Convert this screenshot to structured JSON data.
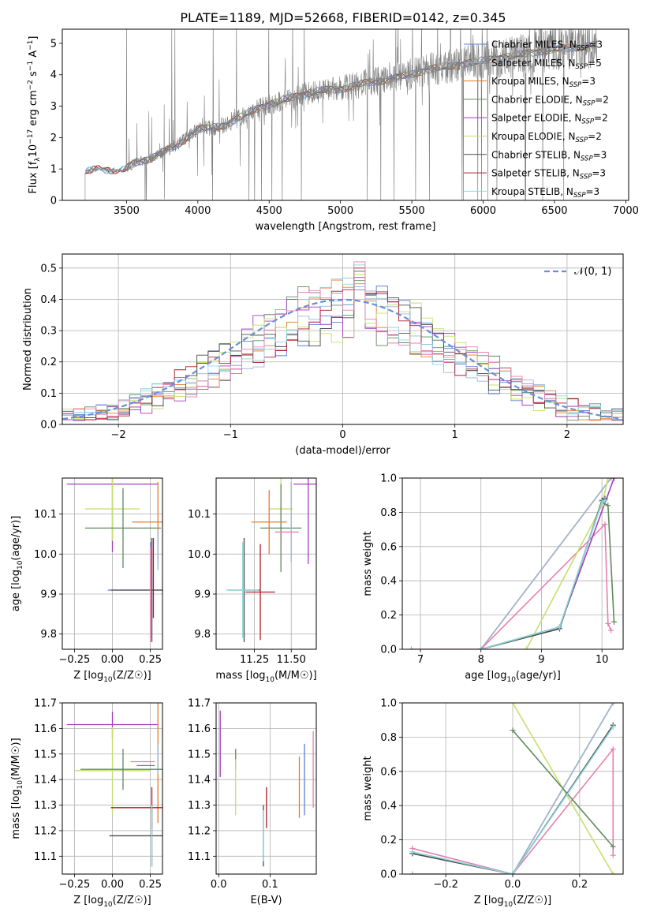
{
  "figure_title": "PLATE=1189, MJD=52668, FIBERID=0142, z=0.345",
  "colors": {
    "Chabrier MILES": "#5b7fd6",
    "Salpeter MILES": "#98b7d8",
    "Kroupa MILES": "#e87b25",
    "Chabrier ELODIE": "#5f8a5f",
    "Salpeter ELODIE": "#a23fbf",
    "Kroupa ELODIE": "#c5df6e",
    "Chabrier STELIB": "#4b4b4b",
    "Salpeter STELIB": "#b01a2a",
    "Kroupa STELIB": "#8fd6de",
    "pink_extra": "#e87fb0",
    "data": "#808080",
    "normal": "#6a8fd8"
  },
  "chart_data": [
    {
      "type": "line",
      "id": "spectrum",
      "xlabel": "wavelength [Angstrom, rest frame]",
      "ylabel_parts": [
        "Flux [f",
        "λ",
        "10",
        "−17",
        " erg cm",
        "−2",
        " s",
        "−1",
        " A",
        "−1",
        "]"
      ],
      "xlim": [
        3050,
        7020
      ],
      "ylim": [
        0,
        5.45
      ],
      "xticks": [
        3500,
        4000,
        4500,
        5000,
        5500,
        6000,
        6500,
        7000
      ],
      "yticks": [
        0,
        1,
        2,
        3,
        4,
        5
      ],
      "grid": false,
      "legend_position": "upper right",
      "series": [
        {
          "name": "Chabrier MILES",
          "sub": "SSP",
          "n": "3"
        },
        {
          "name": "Salpeter MILES",
          "sub": "SSP",
          "n": "5"
        },
        {
          "name": "Kroupa MILES",
          "sub": "SSP",
          "n": "3"
        },
        {
          "name": "Chabrier ELODIE",
          "sub": "SSP",
          "n": "2"
        },
        {
          "name": "Salpeter ELODIE",
          "sub": "SSP",
          "n": "2"
        },
        {
          "name": "Kroupa ELODIE",
          "sub": "SSP",
          "n": "2"
        },
        {
          "name": "Chabrier STELIB",
          "sub": "SSP",
          "n": "3"
        },
        {
          "name": "Salpeter STELIB",
          "sub": "SSP",
          "n": "3"
        },
        {
          "name": "Kroupa STELIB",
          "sub": "SSP",
          "n": "3"
        }
      ],
      "continuum": {
        "x": [
          3210,
          3300,
          3480,
          3560,
          3700,
          3850,
          4000,
          4200,
          4400,
          4600,
          4800,
          5000,
          5200,
          5400,
          5600,
          5800,
          6000,
          6200,
          6400,
          6600,
          6800
        ],
        "y": [
          0.9,
          1.0,
          0.95,
          1.2,
          1.4,
          1.75,
          2.25,
          2.4,
          2.9,
          3.2,
          3.45,
          3.55,
          3.75,
          3.9,
          4.15,
          4.3,
          4.45,
          4.6,
          4.75,
          4.85,
          4.95
        ]
      }
    },
    {
      "type": "histogram",
      "id": "residuals",
      "xlabel": "(data-model)/error",
      "ylabel": "Normed distribution",
      "xlim": [
        -2.5,
        2.5
      ],
      "ylim": [
        0,
        0.545
      ],
      "xticks": [
        -2,
        -1,
        0,
        1,
        2
      ],
      "yticks": [
        0.0,
        0.1,
        0.2,
        0.3,
        0.4,
        0.5
      ],
      "grid": true,
      "legend": [
        {
          "label": "𝒩(0, 1)"
        }
      ],
      "legend_position": "upper right",
      "bin_width": 0.1,
      "bin_start": -2.5
    },
    {
      "type": "scatter",
      "id": "age_vs_Z",
      "xlabel": "Z [log10(Z/Z☉)]",
      "ylabel": "age  [log10(age/yr)]",
      "xlim": [
        -0.33,
        0.33
      ],
      "ylim": [
        9.762,
        10.19
      ],
      "xticks": [
        -0.25,
        0.0,
        0.25
      ],
      "xticklabels": [
        "−0.25",
        "0.00",
        "0.25"
      ],
      "yticks": [
        9.8,
        9.9,
        10.0,
        10.1
      ],
      "grid": true,
      "errorbars": [
        {
          "c": "Salpeter ELODIE",
          "x": 0.0,
          "y": 10.175,
          "xerr": 0.3,
          "yerr": 0.17
        },
        {
          "c": "Kroupa ELODIE",
          "x": 0.0,
          "y": 10.113,
          "xerr": 0.18,
          "yerr": 0.08
        },
        {
          "c": "Chabrier ELODIE",
          "x": 0.07,
          "y": 10.065,
          "xerr": 0.25,
          "yerr": 0.1
        },
        {
          "c": "Kroupa MILES",
          "x": 0.3,
          "y": 10.08,
          "xerr": 0.17,
          "yerr": 0.1
        },
        {
          "c": "Chabrier MILES",
          "x": 0.25,
          "y": 9.91,
          "xerr": 0.28,
          "yerr": 0.12
        },
        {
          "c": "Chabrier STELIB",
          "x": 0.26,
          "y": 9.91,
          "xerr": 0.27,
          "yerr": 0.13
        },
        {
          "c": "Salpeter STELIB",
          "x": 0.27,
          "y": 9.94,
          "xerr": 0.0,
          "yerr": 0.1
        },
        {
          "c": "pink_extra",
          "x": 0.25,
          "y": 9.9,
          "xerr": 0.0,
          "yerr": 0.12
        },
        {
          "c": "Salpeter MILES",
          "x": 0.3,
          "y": 10.01,
          "xerr": 0.0,
          "yerr": 0.05
        }
      ]
    },
    {
      "type": "scatter",
      "id": "age_vs_mass",
      "xlabel": "mass [log10(M/M☉)]",
      "ylabel": "",
      "xlim": [
        10.99,
        11.67
      ],
      "ylim": [
        9.762,
        10.19
      ],
      "xticks": [
        11.25,
        11.5
      ],
      "xticklabels": [
        "11.25",
        "11.50"
      ],
      "yticks": [
        9.8,
        9.9,
        10.0,
        10.1
      ],
      "grid": true,
      "errorbars": [
        {
          "c": "Salpeter ELODIE",
          "x": 11.615,
          "y": 10.175,
          "xerr": 0.1,
          "yerr": 0.2
        },
        {
          "c": "Kroupa ELODIE",
          "x": 11.43,
          "y": 10.113,
          "xerr": 0.08,
          "yerr": 0.09
        },
        {
          "c": "Chabrier ELODIE",
          "x": 11.43,
          "y": 10.065,
          "xerr": 0.14,
          "yerr": 0.11
        },
        {
          "c": "Kroupa MILES",
          "x": 11.35,
          "y": 10.08,
          "xerr": 0.12,
          "yerr": 0.08
        },
        {
          "c": "Salpeter MILES",
          "x": 11.5,
          "y": 10.08,
          "xerr": 0.0,
          "yerr": 0.1
        },
        {
          "c": "pink_extra",
          "x": 11.47,
          "y": 10.055,
          "xerr": 0.08,
          "yerr": 0.0
        },
        {
          "c": "Chabrier STELIB",
          "x": 11.18,
          "y": 9.91,
          "xerr": 0.11,
          "yerr": 0.13
        },
        {
          "c": "Salpeter STELIB",
          "x": 11.29,
          "y": 9.905,
          "xerr": 0.1,
          "yerr": 0.12
        },
        {
          "c": "Kroupa STELIB",
          "x": 11.17,
          "y": 9.91,
          "xerr": 0.11,
          "yerr": 0.12
        }
      ]
    },
    {
      "type": "line",
      "id": "massweight_vs_age",
      "xlabel": "age  [log10(age/yr)]",
      "ylabel": "mass weight",
      "xlim": [
        6.7,
        10.35
      ],
      "ylim": [
        0,
        1
      ],
      "xticks": [
        7,
        8,
        9,
        10
      ],
      "yticks": [
        0.0,
        0.2,
        0.4,
        0.6,
        0.8,
        1.0
      ],
      "grid": true,
      "series": [
        {
          "c": "Kroupa MILES",
          "x": [
            8.0,
            10.15,
            10.2
          ],
          "y": [
            0.0,
            1.0,
            1.0
          ]
        },
        {
          "c": "Salpeter MILES",
          "x": [
            8.0,
            10.15
          ],
          "y": [
            0.0,
            1.0
          ]
        },
        {
          "c": "pink_extra",
          "x": [
            6.85,
            8.0,
            10.05,
            10.1,
            10.15
          ],
          "y": [
            0.0,
            0.0,
            0.73,
            0.15,
            0.11
          ]
        },
        {
          "c": "Salpeter ELODIE",
          "x": [
            8.0,
            9.3,
            10.2
          ],
          "y": [
            0.0,
            0.13,
            1.0
          ]
        },
        {
          "c": "Kroupa ELODIE",
          "x": [
            8.75,
            10.0,
            10.1
          ],
          "y": [
            0.0,
            0.84,
            1.0
          ]
        },
        {
          "c": "Chabrier ELODIE",
          "x": [
            8.0,
            9.3,
            10.0,
            10.1,
            10.2
          ],
          "y": [
            0.0,
            0.13,
            0.86,
            0.84,
            0.16
          ]
        },
        {
          "c": "Chabrier STELIB",
          "x": [
            8.0,
            9.3,
            10.0,
            10.05
          ],
          "y": [
            0.0,
            0.12,
            0.87,
            0.88
          ]
        },
        {
          "c": "Kroupa STELIB",
          "x": [
            8.0,
            9.3,
            10.0,
            10.05
          ],
          "y": [
            0.0,
            0.13,
            0.86,
            0.87
          ]
        }
      ]
    },
    {
      "type": "scatter",
      "id": "mass_vs_Z",
      "xlabel": "Z [log10(Z/Z☉)]",
      "ylabel": "mass [log10(M/M☉)]",
      "xlim": [
        -0.33,
        0.33
      ],
      "ylim": [
        11.03,
        11.7
      ],
      "xticks": [
        -0.25,
        0.0,
        0.25
      ],
      "xticklabels": [
        "−0.25",
        "0.00",
        "0.25"
      ],
      "yticks": [
        11.1,
        11.2,
        11.3,
        11.4,
        11.5,
        11.6,
        11.7
      ],
      "grid": true,
      "errorbars": [
        {
          "c": "Salpeter ELODIE",
          "x": 0.0,
          "y": 11.615,
          "xerr": 0.3,
          "yerr": 0.05
        },
        {
          "c": "Kroupa MILES",
          "x": 0.3,
          "y": 11.48,
          "xerr": 0.0,
          "yerr": 0.25
        },
        {
          "c": "Salpeter MILES",
          "x": 0.3,
          "y": 11.48,
          "xerr": 0.0,
          "yerr": 0.06
        },
        {
          "c": "pink_extra",
          "x": 0.2,
          "y": 11.47,
          "xerr": 0.08,
          "yerr": 0.0
        },
        {
          "c": "Chabrier MILES",
          "x": 0.22,
          "y": 11.455,
          "xerr": 0.06,
          "yerr": 0.0
        },
        {
          "c": "Kroupa ELODIE",
          "x": 0.0,
          "y": 11.435,
          "xerr": 0.25,
          "yerr": 0.17
        },
        {
          "c": "Chabrier ELODIE",
          "x": 0.07,
          "y": 11.44,
          "xerr": 0.28,
          "yerr": 0.08
        },
        {
          "c": "Salpeter STELIB",
          "x": 0.26,
          "y": 11.29,
          "xerr": 0.27,
          "yerr": 0.08
        },
        {
          "c": "Chabrier STELIB",
          "x": 0.26,
          "y": 11.18,
          "xerr": 0.28,
          "yerr": 0.12
        },
        {
          "c": "Kroupa STELIB",
          "x": 0.26,
          "y": 11.18,
          "xerr": 0.0,
          "yerr": 0.12
        }
      ]
    },
    {
      "type": "scatter",
      "id": "mass_vs_ebv",
      "xlabel": "E(B-V)",
      "ylabel": "",
      "xlim": [
        -0.005,
        0.19
      ],
      "ylim": [
        11.03,
        11.7
      ],
      "xticks": [
        0.0,
        0.1
      ],
      "xticklabels": [
        "0.0",
        "0.1"
      ],
      "yticks": [
        11.1,
        11.2,
        11.3,
        11.4,
        11.5,
        11.6,
        11.7
      ],
      "grid": true,
      "errorbars": [
        {
          "c": "Salpeter ELODIE",
          "x": 0.003,
          "y": 11.54,
          "xerr": 0.0,
          "yerr": 0.13
        },
        {
          "c": "Chabrier ELODIE",
          "x": 0.033,
          "y": 11.48,
          "xerr": 0.0,
          "yerr": 0.04
        },
        {
          "c": "Kroupa ELODIE",
          "x": 0.033,
          "y": 11.37,
          "xerr": 0.0,
          "yerr": 0.11
        },
        {
          "c": "Salpeter STELIB",
          "x": 0.093,
          "y": 11.29,
          "xerr": 0.0,
          "yerr": 0.08
        },
        {
          "c": "Chabrier STELIB",
          "x": 0.087,
          "y": 11.18,
          "xerr": 0.0,
          "yerr": 0.12
        },
        {
          "c": "Kroupa STELIB",
          "x": 0.087,
          "y": 11.18,
          "xerr": 0.0,
          "yerr": 0.1
        },
        {
          "c": "Kroupa MILES",
          "x": 0.157,
          "y": 11.37,
          "xerr": 0.0,
          "yerr": 0.12
        },
        {
          "c": "Chabrier MILES",
          "x": 0.167,
          "y": 11.4,
          "xerr": 0.0,
          "yerr": 0.14
        },
        {
          "c": "pink_extra",
          "x": 0.184,
          "y": 11.44,
          "xerr": 0.0,
          "yerr": 0.15
        }
      ]
    },
    {
      "type": "line",
      "id": "massweight_vs_Z",
      "xlabel": "Z [log10(Z/Z☉)]",
      "ylabel": "mass weight",
      "xlim": [
        -0.33,
        0.33
      ],
      "ylim": [
        0,
        1
      ],
      "xticks": [
        -0.2,
        0.0,
        0.2
      ],
      "xticklabels": [
        "−0.2",
        "0.0",
        "0.2"
      ],
      "yticks": [
        0.0,
        0.2,
        0.4,
        0.6,
        0.8,
        1.0
      ],
      "grid": true,
      "series": [
        {
          "c": "Kroupa MILES",
          "x": [
            -0.3,
            0.0,
            0.3
          ],
          "y": [
            0.0,
            0.0,
            1.0
          ]
        },
        {
          "c": "Salpeter MILES",
          "x": [
            -0.3,
            0.0,
            0.3
          ],
          "y": [
            0.0,
            0.0,
            1.0
          ]
        },
        {
          "c": "pink_extra",
          "x": [
            -0.3,
            0.0,
            0.3,
            0.3
          ],
          "y": [
            0.15,
            0.0,
            0.73,
            0.11
          ]
        },
        {
          "c": "Kroupa ELODIE",
          "x": [
            0.0,
            0.3
          ],
          "y": [
            1.0,
            0.0
          ]
        },
        {
          "c": "Chabrier ELODIE",
          "x": [
            0.0,
            0.3
          ],
          "y": [
            0.84,
            0.16
          ]
        },
        {
          "c": "Chabrier STELIB",
          "x": [
            -0.3,
            0.0,
            0.3
          ],
          "y": [
            0.12,
            0.0,
            0.87
          ]
        },
        {
          "c": "Kroupa STELIB",
          "x": [
            -0.3,
            0.0,
            0.3
          ],
          "y": [
            0.13,
            0.0,
            0.86
          ]
        }
      ]
    }
  ]
}
